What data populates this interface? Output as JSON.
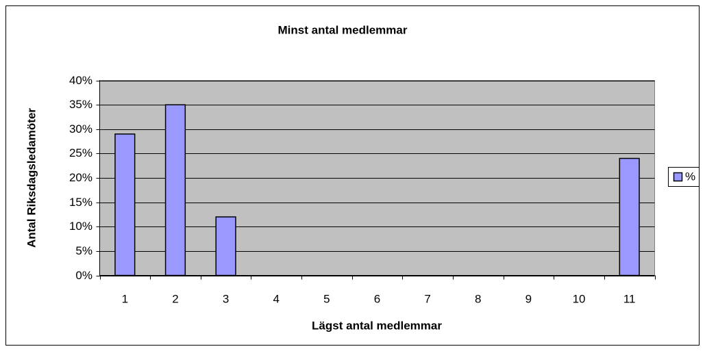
{
  "chart_data": {
    "type": "bar",
    "title": "Minst antal medlemmar",
    "x_label": "Lägst antal medlemmar",
    "y_label": "Antal Riksdagsledamöter",
    "categories": [
      "1",
      "2",
      "3",
      "4",
      "5",
      "6",
      "7",
      "8",
      "9",
      "10",
      "11"
    ],
    "series": [
      {
        "name": "%",
        "color": "#9999ff",
        "values": [
          29,
          35,
          12,
          null,
          null,
          null,
          null,
          null,
          null,
          null,
          24
        ]
      }
    ],
    "ylim": [
      0,
      40
    ],
    "yticks": [
      {
        "value": 0,
        "label": "0%"
      },
      {
        "value": 5,
        "label": "5%"
      },
      {
        "value": 10,
        "label": "10%"
      },
      {
        "value": 15,
        "label": "15%"
      },
      {
        "value": 20,
        "label": "20%"
      },
      {
        "value": 25,
        "label": "25%"
      },
      {
        "value": 30,
        "label": "30%"
      },
      {
        "value": 35,
        "label": "35%"
      },
      {
        "value": 40,
        "label": "40%"
      }
    ],
    "grid": true,
    "legend": "right"
  }
}
